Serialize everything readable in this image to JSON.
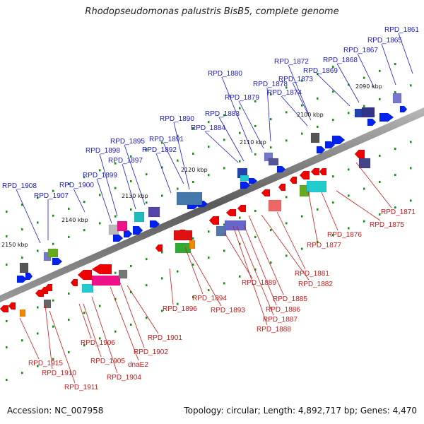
{
  "title": "Rhodopseudomonas palustris BisB5, complete genome",
  "accession_label": "Accession: NC_007958",
  "summary_label": "Topology: circular; Length: 4,892,717 bp; Genes: 4,470",
  "ticks": [
    "2090 kbp",
    "2100 kbp",
    "2110 kbp",
    "2120 kbp",
    "2130 kbp",
    "2140 kbp",
    "2150 kbp"
  ],
  "top_genes": [
    "RPD_1861",
    "RPD_1865",
    "RPD_1867",
    "RPD_1868",
    "RPD_1869",
    "RPD_1872",
    "RPD_1873",
    "RPD_1874",
    "RPD_1878",
    "RPD_1879",
    "RPD_1880",
    "RPD_1883",
    "RPD_1884",
    "RPD_1890",
    "RPD_1891",
    "RPD_1892",
    "RPD_1895",
    "RPD_1897",
    "RPD_1898",
    "RPD_1899",
    "RPD_1900",
    "RPD_1907",
    "RPD_1908"
  ],
  "bottom_genes": [
    "RPD_1871",
    "RPD_1875",
    "RPD_1876",
    "RPD_1877",
    "RPD_1881",
    "RPD_1882",
    "RPD_1885",
    "RPD_1886",
    "RPD_1887",
    "RPD_1888",
    "RPD_1889",
    "RPD_1893",
    "RPD_1894",
    "RPD_1896",
    "RPD_1901",
    "RPD_1902",
    "dnaE2",
    "RPD_1904",
    "RPD_1905",
    "RPD_1906",
    "RPD_1910",
    "RPD_1911",
    "RPD_1915"
  ],
  "colors": {
    "forward_label": "#1a1acc",
    "reverse_label": "#cc1a1a",
    "forward_arrow": "#0022ee",
    "reverse_arrow": "#ee0000",
    "backbone": "#6a6a6a",
    "tick_mark": "#1a8a1a"
  }
}
